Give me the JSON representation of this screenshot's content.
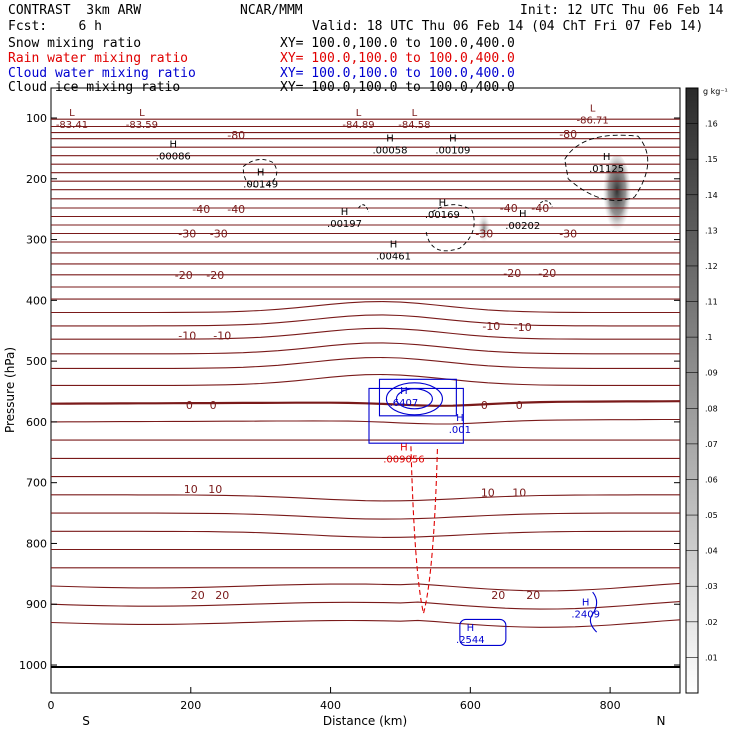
{
  "header": {
    "model": "CONTRAST  3km ARW",
    "center": "NCAR/MMM",
    "init": "Init: 12 UTC Thu 06 Feb 14",
    "fcst": "Fcst:    6 h",
    "valid": "Valid: 18 UTC Thu 06 Feb 14 (04 ChT Fri 07 Feb 14)",
    "fields": [
      {
        "name": "Snow mixing ratio",
        "xy": "XY= 100.0,100.0 to 100.0,400.0",
        "color": "#000000"
      },
      {
        "name": "Rain water mixing ratio",
        "xy": "XY= 100.0,100.0 to 100.0,400.0",
        "color": "#e00000"
      },
      {
        "name": "Cloud water mixing ratio",
        "xy": "XY= 100.0,100.0 to 100.0,400.0",
        "color": "#0000d0"
      },
      {
        "name": "Cloud ice mixing ratio",
        "xy": "XY= 100.0,100.0 to 100.0,400.0",
        "color": "#000000"
      }
    ]
  },
  "chart_data": {
    "type": "contour",
    "xlabel": "Distance (km)",
    "ylabel": "Pressure (hPa)",
    "xlim": [
      0,
      900
    ],
    "ylim": [
      1050,
      50
    ],
    "x_ticks": [
      0,
      200,
      400,
      600,
      800
    ],
    "y_ticks": [
      100,
      200,
      300,
      400,
      500,
      600,
      700,
      800,
      900,
      1000
    ],
    "x_end_labels": {
      "left": "S",
      "right": "N"
    },
    "colorbar": {
      "unit": "g kg⁻¹",
      "ticks": [
        ".01",
        ".02",
        ".03",
        ".04",
        ".05",
        ".06",
        ".07",
        ".08",
        ".09",
        ".1",
        ".11",
        ".12",
        ".13",
        ".14",
        ".15",
        ".16"
      ]
    },
    "temperature_contours": {
      "color": "#7a1a1a",
      "labels": [
        {
          "text": "-80",
          "x": 265,
          "p": 128
        },
        {
          "text": "-80",
          "x": 740,
          "p": 126
        },
        {
          "text": "-40",
          "x": 215,
          "p": 250
        },
        {
          "text": "-40",
          "x": 265,
          "p": 250
        },
        {
          "text": "-40",
          "x": 655,
          "p": 248
        },
        {
          "text": "-40",
          "x": 700,
          "p": 248
        },
        {
          "text": "-30",
          "x": 195,
          "p": 290
        },
        {
          "text": "-30",
          "x": 240,
          "p": 290
        },
        {
          "text": "-30",
          "x": 620,
          "p": 290
        },
        {
          "text": "-30",
          "x": 740,
          "p": 290
        },
        {
          "text": "-20",
          "x": 190,
          "p": 358
        },
        {
          "text": "-20",
          "x": 235,
          "p": 358
        },
        {
          "text": "-20",
          "x": 660,
          "p": 355
        },
        {
          "text": "-20",
          "x": 710,
          "p": 355
        },
        {
          "text": "-10",
          "x": 195,
          "p": 458
        },
        {
          "text": "-10",
          "x": 245,
          "p": 458
        },
        {
          "text": "-10",
          "x": 630,
          "p": 442
        },
        {
          "text": "-10",
          "x": 675,
          "p": 444
        },
        {
          "text": "0",
          "x": 198,
          "p": 572
        },
        {
          "text": "0",
          "x": 232,
          "p": 572
        },
        {
          "text": "0",
          "x": 620,
          "p": 572
        },
        {
          "text": "0",
          "x": 670,
          "p": 572
        },
        {
          "text": "10",
          "x": 200,
          "p": 710
        },
        {
          "text": "10",
          "x": 235,
          "p": 710
        },
        {
          "text": "10",
          "x": 625,
          "p": 716
        },
        {
          "text": "10",
          "x": 670,
          "p": 716
        },
        {
          "text": "20",
          "x": 210,
          "p": 885
        },
        {
          "text": "20",
          "x": 245,
          "p": 885
        },
        {
          "text": "20",
          "x": 640,
          "p": 885
        },
        {
          "text": "20",
          "x": 690,
          "p": 885
        }
      ]
    },
    "extrema": [
      {
        "kind": "L",
        "value": "-83.41",
        "x": 30,
        "p": 100,
        "color": "#7a1a1a"
      },
      {
        "kind": "L",
        "value": "-83.59",
        "x": 130,
        "p": 100,
        "color": "#7a1a1a"
      },
      {
        "kind": "L",
        "value": "-84.89",
        "x": 440,
        "p": 100,
        "color": "#7a1a1a"
      },
      {
        "kind": "L",
        "value": "-84.58",
        "x": 520,
        "p": 100,
        "color": "#7a1a1a"
      },
      {
        "kind": "L",
        "value": "-86.71",
        "x": 775,
        "p": 93,
        "color": "#7a1a1a"
      },
      {
        "kind": "H",
        "value": ".00086",
        "x": 175,
        "p": 152,
        "color": "#000000"
      },
      {
        "kind": "H",
        "value": ".00149",
        "x": 300,
        "p": 198,
        "color": "#000000"
      },
      {
        "kind": "H",
        "value": ".00058",
        "x": 485,
        "p": 142,
        "color": "#000000"
      },
      {
        "kind": "H",
        "value": ".00109",
        "x": 575,
        "p": 142,
        "color": "#000000"
      },
      {
        "kind": "H",
        "value": ".01125",
        "x": 795,
        "p": 172,
        "color": "#000000"
      },
      {
        "kind": "H",
        "value": ".00197",
        "x": 420,
        "p": 263,
        "color": "#000000"
      },
      {
        "kind": "H",
        "value": ".00169",
        "x": 560,
        "p": 248,
        "color": "#000000"
      },
      {
        "kind": "H",
        "value": ".00202",
        "x": 675,
        "p": 266,
        "color": "#000000"
      },
      {
        "kind": "H",
        "value": ".00461",
        "x": 490,
        "p": 316,
        "color": "#000000"
      },
      {
        "kind": "H",
        "value": ".6407",
        "x": 505,
        "p": 557,
        "color": "#0000d0"
      },
      {
        "kind": "H",
        "value": ".001",
        "x": 585,
        "p": 602,
        "color": "#0000d0"
      },
      {
        "kind": "H",
        "value": ".009056",
        "x": 505,
        "p": 650,
        "color": "#e00000"
      },
      {
        "kind": "H",
        "value": ".2544",
        "x": 600,
        "p": 947,
        "color": "#0000d0"
      },
      {
        "kind": "H",
        "value": ".2409",
        "x": 765,
        "p": 905,
        "color": "#0000d0"
      }
    ]
  }
}
